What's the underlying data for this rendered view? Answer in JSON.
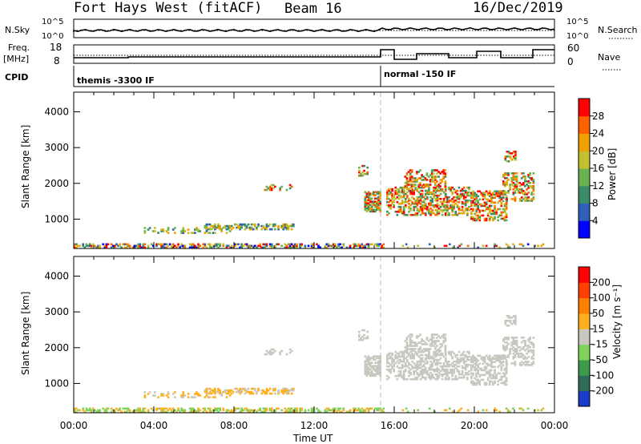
{
  "header": {
    "station": "Fort Hays West (fitACF)",
    "beam": "Beam 16",
    "date": "16/Dec/2019"
  },
  "top_panels": {
    "nsky_label": "N.Sky",
    "nsky_ticks": [
      "10^5",
      "10^0"
    ],
    "nsearch_label": "N.Search",
    "nsearch_ticks": [
      "10^5",
      "10^0"
    ],
    "freq_label": "Freq.",
    "freq_unit": "[MHz]",
    "freq_ticks": [
      "18",
      "8"
    ],
    "nave_label": "Nave",
    "nave_ticks": [
      "60",
      "0"
    ],
    "cpid_label": "CPID",
    "cpid_segments": [
      {
        "label": "themis -3300 IF",
        "start_hour": 0,
        "end_hour": 15.25
      },
      {
        "label": "normal -150 IF",
        "start_hour": 15.25,
        "end_hour": 24
      }
    ]
  },
  "colors": {
    "power": [
      "#0000ff",
      "#2f5fb7",
      "#3b8c66",
      "#66b34f",
      "#c0c030",
      "#f0a000",
      "#ff6000",
      "#ff0000"
    ],
    "velocity": [
      "#1a3cc8",
      "#2f6c5a",
      "#3d9a4a",
      "#7fd25a",
      "#c8c8c0",
      "#ffb020",
      "#ff8000",
      "#ff4000",
      "#ff0000"
    ]
  },
  "chart_data": [
    {
      "type": "heatmap",
      "title": "Power",
      "xlabel": "",
      "ylabel": "Slant Range [km]",
      "xlim_hours": [
        0,
        24
      ],
      "ylim": [
        180,
        4550
      ],
      "yticks": [
        "1000",
        "2000",
        "3000",
        "4000"
      ],
      "colorbar_label": "Power [dB]",
      "colorbar_ticks": [
        "4",
        "8",
        "12",
        "16",
        "20",
        "24",
        "28"
      ],
      "vline_hour": 15.25
    },
    {
      "type": "heatmap",
      "title": "Velocity",
      "xlabel": "Time UT",
      "ylabel": "Slant Range [km]",
      "xlim_hours": [
        0,
        24
      ],
      "ylim": [
        180,
        4550
      ],
      "yticks": [
        "1000",
        "2000",
        "3000",
        "4000"
      ],
      "xticks": [
        "00:00",
        "04:00",
        "08:00",
        "12:00",
        "16:00",
        "20:00",
        "00:00"
      ],
      "colorbar_label": "Velocity [m s⁻¹]",
      "colorbar_ticks": [
        "200",
        "100",
        "50",
        "15",
        "-15",
        "-50",
        "-100",
        "-200"
      ],
      "vline_hour": 15.25
    }
  ]
}
